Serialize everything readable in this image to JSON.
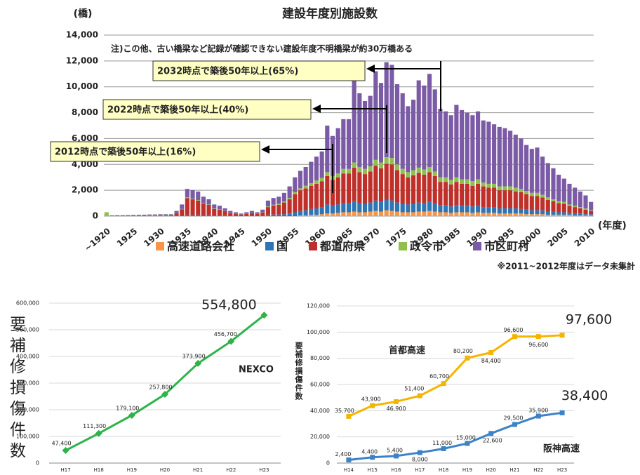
{
  "chart_data": [
    {
      "type": "stacked_bar",
      "title": "建設年度別施設数",
      "y_label": "(橋)",
      "x_label": "(年度)",
      "annotations": [
        "注)この他、古い橋梁など記録が確認できない建設年度不明橋梁が約30万橋ある",
        "2032時点で築後50年以上(65%)",
        "2022時点で築後50年以上(40%)",
        "2012時点で築後50年以上(16%)"
      ],
      "footnote": "※2011~2012年度はデータ未集計",
      "ylim": [
        0,
        14000
      ],
      "yticks": [
        0,
        {
          "value": 2000,
          "label": "2,000"
        },
        {
          "value": 4000,
          "label": "4,000"
        },
        {
          "value": 6000,
          "label": "6,000"
        },
        {
          "value": 8000,
          "label": "8,000"
        },
        {
          "value": 10000,
          "label": "10,000"
        },
        {
          "value": 12000,
          "label": "12,000"
        },
        {
          "value": 14000,
          "label": "14,000"
        }
      ],
      "grid": true,
      "categories": [
        "~1920",
        null,
        null,
        null,
        null,
        "1925",
        null,
        null,
        null,
        null,
        "1930",
        null,
        null,
        null,
        null,
        "1935",
        null,
        null,
        null,
        null,
        "1940",
        null,
        null,
        null,
        null,
        "1945",
        null,
        null,
        null,
        null,
        "1950",
        null,
        null,
        null,
        null,
        "1955",
        null,
        null,
        null,
        null,
        "1960",
        null,
        null,
        null,
        null,
        "1965",
        null,
        null,
        null,
        null,
        "1970",
        null,
        null,
        null,
        null,
        "1975",
        null,
        null,
        null,
        null,
        "1980",
        null,
        null,
        null,
        null,
        "1985",
        null,
        null,
        null,
        null,
        "1990",
        null,
        null,
        null,
        null,
        "1995",
        null,
        null,
        null,
        null,
        "2000",
        null,
        null,
        null,
        null,
        "2005",
        null,
        null,
        null,
        null,
        "2010"
      ],
      "series": [
        {
          "name": "高速道路会社",
          "color": "#f79646",
          "values": [
            0,
            0,
            0,
            0,
            0,
            0,
            0,
            0,
            0,
            0,
            0,
            0,
            0,
            0,
            0,
            0,
            0,
            0,
            0,
            0,
            0,
            0,
            0,
            0,
            0,
            0,
            0,
            0,
            0,
            0,
            0,
            0,
            0,
            0,
            0,
            0,
            50,
            50,
            100,
            100,
            150,
            200,
            200,
            250,
            300,
            300,
            350,
            300,
            300,
            350,
            400,
            350,
            450,
            400,
            350,
            300,
            300,
            300,
            350,
            350,
            400,
            350,
            300,
            300,
            250,
            300,
            300,
            300,
            250,
            300,
            250,
            250,
            250,
            200,
            200,
            200,
            200,
            200,
            150,
            150,
            150,
            150,
            100,
            100,
            100,
            100,
            100,
            50,
            50,
            50,
            50
          ]
        },
        {
          "name": "国",
          "color": "#2e75b6",
          "values": [
            0,
            0,
            0,
            0,
            0,
            0,
            0,
            0,
            0,
            0,
            0,
            0,
            0,
            20,
            30,
            100,
            100,
            100,
            80,
            70,
            50,
            50,
            40,
            30,
            20,
            10,
            20,
            20,
            20,
            30,
            100,
            120,
            130,
            150,
            200,
            300,
            350,
            400,
            450,
            500,
            550,
            700,
            600,
            650,
            700,
            700,
            800,
            700,
            650,
            700,
            800,
            750,
            800,
            800,
            700,
            650,
            600,
            650,
            700,
            650,
            700,
            650,
            550,
            550,
            500,
            550,
            500,
            500,
            500,
            500,
            450,
            450,
            450,
            400,
            400,
            400,
            400,
            350,
            350,
            300,
            300,
            300,
            250,
            250,
            200,
            200,
            150,
            150,
            150,
            100,
            100
          ]
        },
        {
          "name": "都道府県",
          "color": "#c0302a",
          "values": [
            0,
            20,
            20,
            20,
            20,
            30,
            30,
            30,
            40,
            40,
            50,
            50,
            60,
            200,
            500,
            1300,
            1200,
            1100,
            900,
            800,
            500,
            450,
            350,
            200,
            150,
            100,
            150,
            200,
            150,
            250,
            600,
            700,
            750,
            900,
            1100,
            1400,
            1600,
            1700,
            1800,
            1900,
            2000,
            2200,
            2000,
            2100,
            2300,
            2300,
            2600,
            2400,
            2300,
            2400,
            2700,
            2600,
            2800,
            2800,
            2500,
            2300,
            2100,
            2200,
            2300,
            2200,
            2300,
            2100,
            1800,
            1800,
            1700,
            1800,
            1700,
            1700,
            1600,
            1700,
            1600,
            1500,
            1500,
            1400,
            1400,
            1400,
            1300,
            1300,
            1200,
            1100,
            1100,
            1000,
            900,
            800,
            700,
            650,
            550,
            500,
            400,
            350,
            250
          ]
        },
        {
          "name": "政令市",
          "color": "#8fc04f",
          "values": [
            300,
            0,
            0,
            0,
            0,
            0,
            20,
            20,
            30,
            30,
            50,
            50,
            40,
            20,
            20,
            50,
            50,
            50,
            40,
            30,
            30,
            20,
            20,
            20,
            10,
            10,
            10,
            20,
            10,
            20,
            50,
            60,
            70,
            80,
            100,
            150,
            150,
            200,
            200,
            250,
            250,
            300,
            300,
            300,
            350,
            350,
            400,
            400,
            400,
            400,
            450,
            450,
            500,
            500,
            450,
            400,
            400,
            400,
            400,
            400,
            400,
            350,
            350,
            350,
            350,
            350,
            350,
            350,
            350,
            350,
            300,
            300,
            300,
            300,
            300,
            300,
            300,
            250,
            250,
            250,
            250,
            200,
            200,
            150,
            150,
            150,
            100,
            100,
            100,
            100,
            50
          ]
        },
        {
          "name": "市区町村",
          "color": "#7b5aa6",
          "values": [
            0,
            30,
            40,
            40,
            50,
            50,
            50,
            60,
            60,
            60,
            50,
            50,
            50,
            160,
            350,
            650,
            650,
            650,
            480,
            400,
            320,
            280,
            190,
            150,
            120,
            80,
            120,
            160,
            120,
            200,
            450,
            520,
            550,
            670,
            900,
            1150,
            1350,
            1450,
            1650,
            1850,
            2050,
            3600,
            3100,
            3500,
            3850,
            3850,
            6350,
            5700,
            5250,
            5450,
            6850,
            6150,
            7350,
            7200,
            6200,
            5850,
            5100,
            5450,
            6750,
            6500,
            7200,
            6350,
            5300,
            5100,
            5000,
            5600,
            5350,
            5150,
            5100,
            5250,
            4800,
            4800,
            4600,
            4600,
            4500,
            4300,
            4100,
            3900,
            3550,
            3400,
            3500,
            2950,
            2650,
            2400,
            2050,
            1800,
            1600,
            1400,
            1200,
            1000,
            650
          ]
        }
      ]
    },
    {
      "type": "line",
      "y_label": "要補修損傷件数",
      "categories": [
        "H17",
        "H18",
        "H19",
        "H20",
        "H21",
        "H22",
        "H23"
      ],
      "ylim": [
        0,
        600000
      ],
      "yticks": [
        0,
        {
          "value": 100000,
          "label": "100,000"
        },
        {
          "value": 200000,
          "label": "200,000"
        },
        {
          "value": 300000,
          "label": "300,000"
        },
        {
          "value": 400000,
          "label": "400,000"
        },
        {
          "value": 500000,
          "label": "500,000"
        },
        {
          "value": 600000,
          "label": "600,000"
        }
      ],
      "grid": true,
      "series": [
        {
          "name": "NEXCO",
          "color": "#2db34a",
          "values": [
            47400,
            111300,
            179100,
            257800,
            373900,
            456700,
            554800
          ],
          "value_labels": [
            "47,400",
            "111,300",
            "179,100",
            "257,800",
            "373,900",
            "456,700",
            "554,800"
          ]
        }
      ]
    },
    {
      "type": "line",
      "y_label": "要補修損傷件数",
      "categories": [
        "H14",
        "H15",
        "H16",
        "H17",
        "H18",
        "H19",
        "H20",
        "H21",
        "H22",
        "H23"
      ],
      "ylim": [
        0,
        120000
      ],
      "yticks": [
        0,
        {
          "value": 20000,
          "label": "20,000"
        },
        {
          "value": 40000,
          "label": "40,000"
        },
        {
          "value": 60000,
          "label": "60,000"
        },
        {
          "value": 80000,
          "label": "80,000"
        },
        {
          "value": 100000,
          "label": "100,000"
        },
        {
          "value": 120000,
          "label": "120,000"
        }
      ],
      "grid": true,
      "series": [
        {
          "name": "首都高速",
          "color": "#f5b400",
          "values": [
            35700,
            43900,
            46900,
            51400,
            60700,
            80200,
            84400,
            96600,
            96600,
            97600
          ],
          "value_labels": [
            "35,700",
            "43,900",
            "46,900",
            "51,400",
            "60,700",
            "80,200",
            "84,400",
            "96,600",
            "96,600",
            "97,600"
          ]
        },
        {
          "name": "阪神高速",
          "color": "#3c82c8",
          "values": [
            2400,
            4400,
            5400,
            8000,
            11000,
            15000,
            22600,
            29500,
            35900,
            38400
          ],
          "value_labels": [
            "2,400",
            "4,400",
            "5,400",
            "8,000",
            "11,000",
            "15,000",
            "22,600",
            "29,500",
            "35,900",
            "38,400"
          ]
        }
      ]
    }
  ]
}
